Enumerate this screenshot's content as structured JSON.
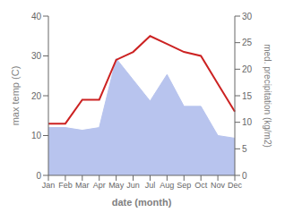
{
  "chart_data": {
    "type": "line",
    "categories": [
      "Jan",
      "Feb",
      "Mar",
      "Apr",
      "May",
      "Jun",
      "Jul",
      "Aug",
      "Sep",
      "Oct",
      "Nov",
      "Dec"
    ],
    "xlabel": "date (month)",
    "ylabel": "max temp (C)",
    "y2label": "med. precipitation (kg/m2)",
    "series": [
      {
        "type": "area",
        "axis": "y2",
        "color": "#b8c4ee",
        "values": [
          9,
          9,
          8.5,
          9,
          22,
          18,
          14,
          19,
          13,
          13,
          7.5,
          7
        ]
      },
      {
        "type": "line",
        "color": "#cc2222",
        "values": [
          13,
          13,
          19,
          19,
          29,
          31,
          35,
          33,
          31,
          30,
          23,
          16
        ]
      }
    ],
    "ylim": [
      0,
      40
    ],
    "yticks": [
      0,
      10,
      20,
      30,
      40
    ],
    "y2lim": [
      0,
      30
    ],
    "y2ticks": [
      0,
      5,
      10,
      15,
      20,
      25,
      30
    ]
  }
}
